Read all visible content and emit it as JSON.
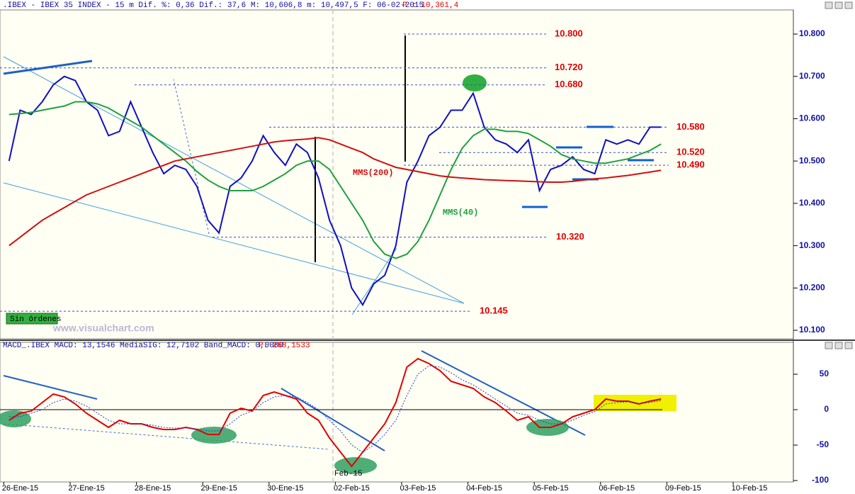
{
  "chart_data": [
    {
      "type": "line",
      "title": ".IBEX - IBEX 35 INDEX -  15 m Dif. %: 0,36 Dif.: 37,6 M: 10,606,8 m: 10,497,5 F: 06-02-2015",
      "subtitle": "P : 10,361,4",
      "ylim": [
        10080,
        10857
      ],
      "yticks": [
        {
          "value": 10100,
          "label": "10.100"
        },
        {
          "value": 10200,
          "label": "10.200"
        },
        {
          "value": 10300,
          "label": "10.300"
        },
        {
          "value": 10400,
          "label": "10.400"
        },
        {
          "value": 10500,
          "label": "10.500"
        },
        {
          "value": 10600,
          "label": "10.600"
        },
        {
          "value": 10700,
          "label": "10.700"
        },
        {
          "value": 10800,
          "label": "10.800"
        }
      ],
      "levels": [
        {
          "value": 10800,
          "label": "10.800"
        },
        {
          "value": 10720,
          "label": "10.720"
        },
        {
          "value": 10680,
          "label": "10.680"
        },
        {
          "value": 10580,
          "label": "10.580"
        },
        {
          "value": 10520,
          "label": "10.520"
        },
        {
          "value": 10490,
          "label": "10.490"
        },
        {
          "value": 10320,
          "label": "10.320"
        },
        {
          "value": 10145,
          "label": "10.145"
        }
      ],
      "series": [
        {
          "color": "#1010c0",
          "values": [
            10500,
            10620,
            10610,
            10640,
            10680,
            10700,
            10690,
            10640,
            10620,
            10560,
            10570,
            10640,
            10580,
            10520,
            10470,
            10490,
            10480,
            10440,
            10360,
            10330,
            10440,
            10460,
            10500,
            10560,
            10520,
            10490,
            10540,
            10520,
            10460,
            10360,
            10300,
            10200,
            10160,
            10210,
            10230,
            10300,
            10450,
            10500,
            10560,
            10580,
            10620,
            10620,
            10660,
            10580,
            10550,
            10540,
            10520,
            10550,
            10430,
            10480,
            10490,
            10510,
            10480,
            10470,
            10550,
            10540,
            10550,
            10540,
            10580,
            10580,
            null,
            null,
            null,
            null,
            null,
            null,
            null,
            null,
            null,
            null,
            null,
            null
          ]
        },
        {
          "name": "MMS(40)",
          "color": "#20a040",
          "values": [
            10610,
            10612,
            10615,
            10620,
            10625,
            10630,
            10640,
            10640,
            10635,
            10625,
            10610,
            10595,
            10580,
            10560,
            10540,
            10520,
            10500,
            10475,
            10455,
            10440,
            10430,
            10430,
            10430,
            10440,
            10455,
            10470,
            10490,
            10500,
            10500,
            10480,
            10440,
            10400,
            10360,
            10310,
            10280,
            10270,
            10280,
            10310,
            10360,
            10420,
            10480,
            10530,
            10560,
            10575,
            10575,
            10570,
            10570,
            10565,
            10550,
            10535,
            10515,
            10505,
            10500,
            10495,
            10495,
            10500,
            10505,
            10515,
            10525,
            10540,
            null,
            null,
            null,
            null,
            null,
            null,
            null,
            null,
            null,
            null,
            null,
            null
          ]
        },
        {
          "name": "MMS(200)",
          "color": "#d01010",
          "values": [
            10300,
            10320,
            10340,
            10360,
            10375,
            10390,
            10405,
            10420,
            10430,
            10440,
            10450,
            10460,
            10470,
            10480,
            10490,
            10500,
            10505,
            10510,
            10515,
            10520,
            10525,
            10530,
            10535,
            10540,
            10545,
            10548,
            10550,
            10552,
            10555,
            10550,
            10540,
            10530,
            10520,
            10505,
            10495,
            10485,
            10480,
            10475,
            10470,
            10465,
            10462,
            10460,
            10458,
            10456,
            10455,
            10454,
            10453,
            10452,
            10451,
            10450,
            10450,
            10452,
            10455,
            10458,
            10460,
            10463,
            10466,
            10470,
            10474,
            10478,
            null,
            null,
            null,
            null,
            null,
            null,
            null,
            null,
            null,
            null,
            null,
            null
          ]
        }
      ],
      "annotations": [
        "Sin órdenes",
        "www.visualchart.com"
      ]
    },
    {
      "type": "line",
      "title": "MACD_.IBEX MACD: 13,1546 MediaSIG: 12,7102 Band_MACD: 0,0000",
      "subtitle": "P: 268,1533",
      "ylim": [
        -102,
        95
      ],
      "yticks": [
        -100,
        -50,
        0,
        50
      ],
      "categories": [
        null,
        "26-Ene-15",
        null,
        null,
        null,
        null,
        null,
        "27-Ene-15",
        null,
        null,
        null,
        null,
        null,
        "28-Ene-15",
        null,
        null,
        null,
        null,
        null,
        "29-Ene-15",
        null,
        null,
        null,
        null,
        null,
        "30-Ene-15",
        null,
        null,
        null,
        null,
        null,
        "02-Feb-15",
        null,
        null,
        null,
        null,
        null,
        "03-Feb-15",
        null,
        null,
        null,
        null,
        null,
        "04-Feb-15",
        null,
        null,
        null,
        null,
        null,
        "05-Feb-15",
        null,
        null,
        null,
        null,
        null,
        "06-Feb-15",
        null,
        null,
        null,
        null,
        null,
        "09-Feb-15",
        null,
        null,
        null,
        null,
        null,
        "10-Feb-15",
        null,
        null,
        null,
        null
      ],
      "series": [
        {
          "color": "#e00000",
          "values": [
            -15,
            -5,
            -2,
            10,
            22,
            18,
            8,
            -5,
            -15,
            -25,
            -15,
            -20,
            -20,
            -25,
            -28,
            -28,
            -25,
            -28,
            -35,
            -35,
            -5,
            2,
            -2,
            20,
            25,
            20,
            15,
            -5,
            -15,
            -40,
            -60,
            -80,
            -60,
            -40,
            -20,
            10,
            60,
            72,
            65,
            55,
            40,
            35,
            30,
            18,
            10,
            -2,
            -15,
            -10,
            -25,
            -25,
            -20,
            -10,
            -5,
            0,
            15,
            12,
            12,
            8,
            12,
            15,
            null,
            null,
            null,
            null,
            null,
            null,
            null,
            null,
            null,
            null,
            null,
            null
          ]
        },
        {
          "color": "#2040d0",
          "dashed": true,
          "values": [
            -10,
            -10,
            -5,
            0,
            10,
            15,
            12,
            5,
            -5,
            -15,
            -20,
            -20,
            -20,
            -22,
            -25,
            -26,
            -26,
            -27,
            -30,
            -30,
            -20,
            -8,
            -2,
            10,
            18,
            20,
            18,
            10,
            0,
            -15,
            -30,
            -50,
            -60,
            -50,
            -35,
            -15,
            20,
            50,
            62,
            60,
            52,
            42,
            35,
            25,
            15,
            5,
            -5,
            -8,
            -15,
            -20,
            -20,
            -15,
            -8,
            -3,
            8,
            10,
            11,
            9,
            10,
            13,
            null,
            null,
            null,
            null,
            null,
            null,
            null,
            null,
            null,
            null,
            null,
            null
          ]
        }
      ],
      "annotations": [
        "Feb-15"
      ]
    }
  ]
}
